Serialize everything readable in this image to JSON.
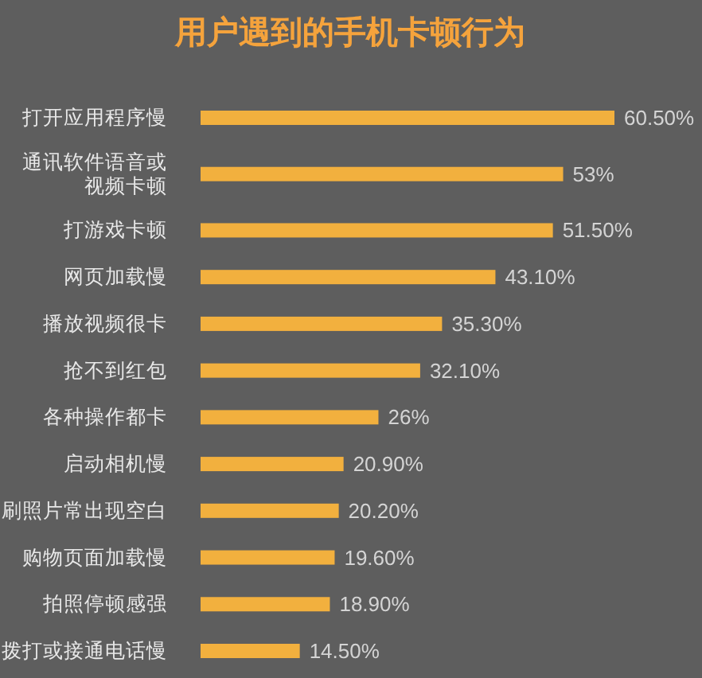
{
  "chart_data": {
    "type": "bar",
    "title": "用户遇到的手机卡顿行为",
    "orientation": "horizontal",
    "categories": [
      "打开应用程序慢",
      "通讯软件语音或视频卡顿",
      "打游戏卡顿",
      "网页加载慢",
      "播放视频很卡",
      "抢不到红包",
      "各种操作都卡",
      "启动相机慢",
      "刷照片常出现空白",
      "购物页面加载慢",
      "拍照停顿感强",
      "拨打或接通电话慢"
    ],
    "values": [
      60.5,
      53,
      51.5,
      43.1,
      35.3,
      32.1,
      26,
      20.9,
      20.2,
      19.6,
      18.9,
      14.5
    ],
    "value_labels": [
      "60.50%",
      "53%",
      "51.50%",
      "43.10%",
      "35.30%",
      "32.10%",
      "26%",
      "20.90%",
      "20.20%",
      "19.60%",
      "18.90%",
      "14.50%"
    ],
    "color": "#f2b03e"
  }
}
